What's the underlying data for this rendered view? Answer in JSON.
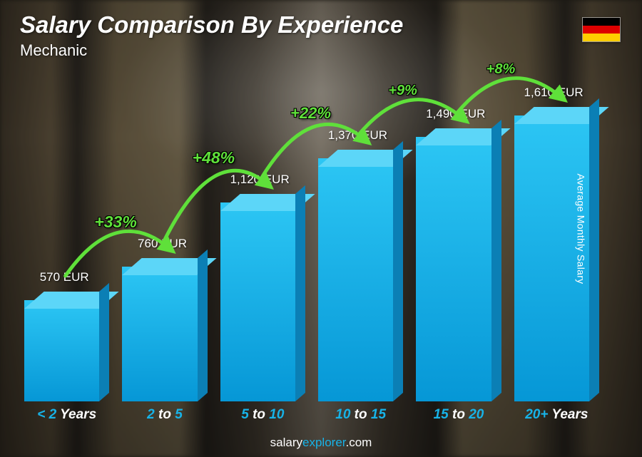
{
  "title": "Salary Comparison By Experience",
  "subtitle": "Mechanic",
  "yaxis_label": "Average Monthly Salary",
  "footer_brand_prefix": "salary",
  "footer_brand_suffix": "explorer",
  "footer_brand_tld": ".com",
  "flag": {
    "stripes": [
      "#000000",
      "#dd0000",
      "#ffce00"
    ]
  },
  "chart": {
    "type": "bar-3d",
    "max_value": 1700,
    "bar_colors": {
      "front_top": "#2cc6f4",
      "front_bottom": "#0697d6",
      "side": "#0b7fb5",
      "top": "#5cd6f8"
    },
    "categories": [
      {
        "prefix": "<",
        "num": " 2 ",
        "suffix": "Years"
      },
      {
        "prefix": "",
        "num": "2 ",
        "mid": "to ",
        "num2": "5",
        "suffix": ""
      },
      {
        "prefix": "",
        "num": "5 ",
        "mid": "to ",
        "num2": "10",
        "suffix": ""
      },
      {
        "prefix": "",
        "num": "10 ",
        "mid": "to ",
        "num2": "15",
        "suffix": ""
      },
      {
        "prefix": "",
        "num": "15 ",
        "mid": "to ",
        "num2": "20",
        "suffix": ""
      },
      {
        "prefix": "",
        "num": "20+ ",
        "suffix": "Years"
      }
    ],
    "values": [
      570,
      760,
      1120,
      1370,
      1490,
      1610
    ],
    "value_labels": [
      "570 EUR",
      "760 EUR",
      "1,120 EUR",
      "1,370 EUR",
      "1,490 EUR",
      "1,610 EUR"
    ],
    "pct_changes": [
      "+33%",
      "+48%",
      "+22%",
      "+9%",
      "+8%"
    ],
    "pct_font_sizes": [
      23,
      23,
      22,
      20,
      20
    ],
    "arc_color": "#5fe03a",
    "arc_stroke": 5
  }
}
